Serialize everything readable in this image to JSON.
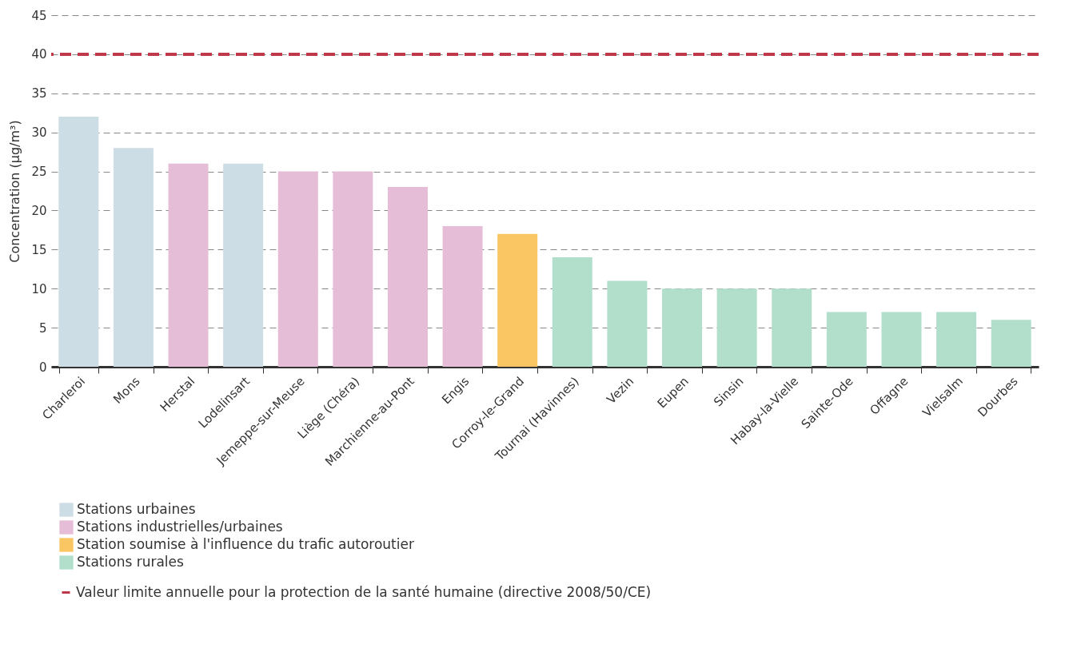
{
  "chart_data": {
    "type": "bar",
    "ylabel": "Concentration (µg/m³)",
    "legend": "bottom",
    "grid": "y",
    "categories": [
      "Charleroi",
      "Mons",
      "Herstal",
      "Lodelinsart",
      "Jemeppe-sur-Meuse",
      "Liège (Chéra)",
      "Marchienne-au-Pont",
      "Engis",
      "Corroy-le-Grand",
      "Tournai (Havinnes)",
      "Vezin",
      "Eupen",
      "Sinsin",
      "Habay-la-Vielle",
      "Sainte-Ode",
      "Offagne",
      "Vielsalm",
      "Dourbes"
    ],
    "series": [
      {
        "name": "Stations urbaines",
        "color": "#cddde5",
        "values": [
          32,
          28,
          null,
          26,
          null,
          null,
          null,
          null,
          null,
          null,
          null,
          null,
          null,
          null,
          null,
          null,
          null,
          null
        ]
      },
      {
        "name": "Stations industrielles/urbaines",
        "color": "#e6bdd6",
        "values": [
          null,
          null,
          26,
          null,
          25,
          25,
          23,
          18,
          null,
          null,
          null,
          null,
          null,
          null,
          null,
          null,
          null,
          null
        ]
      },
      {
        "name": "Station soumise à l'influence du trafic autoroutier",
        "color": "#fac563",
        "values": [
          null,
          null,
          null,
          null,
          null,
          null,
          null,
          null,
          17,
          null,
          null,
          null,
          null,
          null,
          null,
          null,
          null,
          null
        ]
      },
      {
        "name": "Stations rurales",
        "color": "#b2dfcc",
        "values": [
          null,
          null,
          null,
          null,
          null,
          null,
          null,
          null,
          null,
          14,
          11,
          10,
          10,
          10,
          7,
          7,
          7,
          6
        ]
      }
    ],
    "ylim": [
      0,
      45
    ],
    "yticks": [
      0,
      5,
      10,
      15,
      20,
      25,
      30,
      35,
      40,
      45
    ],
    "ref_lines": [
      {
        "axis": "y",
        "value": 40,
        "label": "Valeur limite annuelle pour la protection de la santé humaine (directive 2008/50/CE)",
        "color": "#c0394b",
        "line_style": "dashed"
      }
    ]
  }
}
